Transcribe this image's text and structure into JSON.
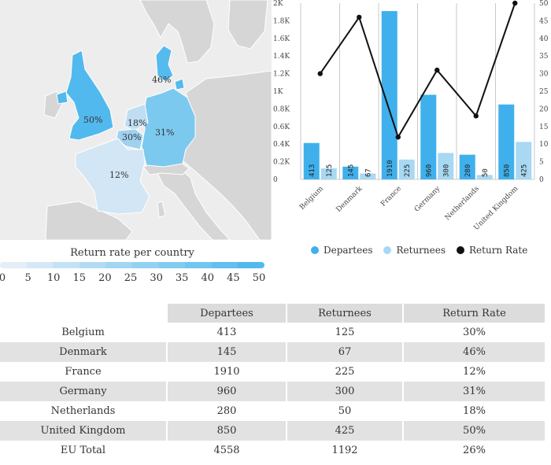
{
  "map": {
    "legend_title": "Return rate per country",
    "legend_ticks": [
      "0",
      "5",
      "10",
      "15",
      "20",
      "25",
      "30",
      "35",
      "40",
      "45",
      "50"
    ],
    "colors": {
      "background": "#ededed",
      "neutral_land": "#d6d6d6",
      "scale_low": "#e4eef7",
      "scale_high": "#52b9ee"
    },
    "labels": {
      "united_kingdom": "50%",
      "denmark": "46%",
      "germany": "31%",
      "belgium": "30%",
      "netherlands": "18%",
      "france": "12%"
    }
  },
  "chart_data": {
    "type": "bar",
    "categories": [
      "Belgium",
      "Denmark",
      "France",
      "Germany",
      "Netherlands",
      "United Kingdom"
    ],
    "series": [
      {
        "name": "Departees",
        "type": "bar",
        "axis": "left",
        "color": "#3fb0ec",
        "values": [
          413,
          145,
          1910,
          960,
          280,
          850
        ]
      },
      {
        "name": "Returnees",
        "type": "bar",
        "axis": "left",
        "color": "#a8d8f2",
        "values": [
          125,
          67,
          225,
          300,
          50,
          425
        ]
      },
      {
        "name": "Return Rate",
        "type": "line",
        "axis": "right",
        "color": "#111111",
        "values": [
          30,
          46,
          12,
          31,
          18,
          50
        ]
      }
    ],
    "y_left": {
      "min": 0,
      "max": 2000,
      "ticks": [
        0,
        200,
        400,
        600,
        800,
        1000,
        1200,
        1400,
        1600,
        1800,
        2000
      ],
      "tick_labels": [
        "0",
        "0.2K",
        "0.4K",
        "0.6K",
        "0.8K",
        "1K",
        "1.2K",
        "1.4K",
        "1.6K",
        "1.8K",
        "2K"
      ]
    },
    "y_right": {
      "min": 0,
      "max": 50,
      "ticks": [
        0,
        5,
        10,
        15,
        20,
        25,
        30,
        35,
        40,
        45,
        50
      ],
      "tick_labels": [
        "0",
        "5",
        "10",
        "15",
        "20",
        "25",
        "30",
        "35",
        "40",
        "45",
        "50"
      ]
    },
    "grid": "vertical",
    "legend_position": "bottom"
  },
  "table": {
    "headers": [
      "",
      "Departees",
      "Returnees",
      "Return Rate"
    ],
    "rows": [
      [
        "Belgium",
        "413",
        "125",
        "30%"
      ],
      [
        "Denmark",
        "145",
        "67",
        "46%"
      ],
      [
        "France",
        "1910",
        "225",
        "12%"
      ],
      [
        "Germany",
        "960",
        "300",
        "31%"
      ],
      [
        "Netherlands",
        "280",
        "50",
        "18%"
      ],
      [
        "United Kingdom",
        "850",
        "425",
        "50%"
      ],
      [
        "EU Total",
        "4558",
        "1192",
        "26%"
      ]
    ]
  }
}
